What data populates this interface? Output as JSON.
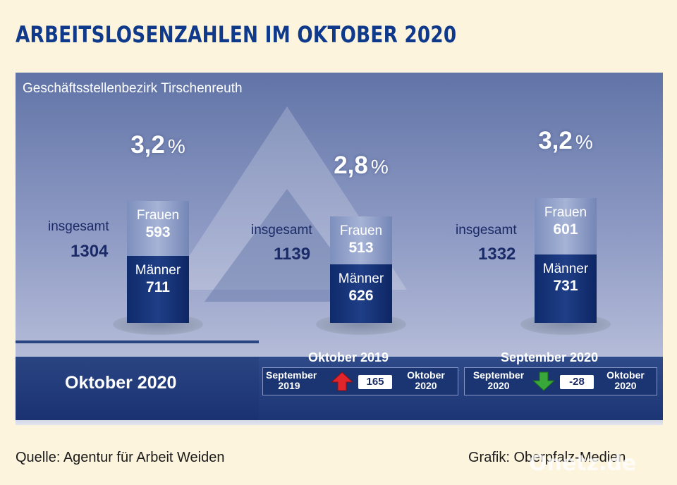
{
  "title": "ARBEITSLOSENZAHLEN IM OKTOBER 2020",
  "subtitle": "Geschäftsstellenbezirk Tirschenreuth",
  "chart_data": {
    "type": "bar",
    "stacked": true,
    "title": "ARBEITSLOSENZAHLEN IM OKTOBER 2020",
    "subtitle": "Geschäftsstellenbezirk Tirschenreuth",
    "bars": [
      {
        "rate": "3,2",
        "unit": "%",
        "total_label": "insgesamt",
        "total": "1304",
        "women_label": "Frauen",
        "women": 593,
        "men_label": "Männer",
        "men": 711
      },
      {
        "rate": "2,8",
        "unit": "%",
        "total_label": "insgesamt",
        "total": "1139",
        "women_label": "Frauen",
        "women": 513,
        "men_label": "Männer",
        "men": 626
      },
      {
        "rate": "3,2",
        "unit": "%",
        "total_label": "insgesamt",
        "total": "1332",
        "women_label": "Frauen",
        "women": 601,
        "men_label": "Männer",
        "men": 731
      }
    ],
    "current_label": "Oktober 2020",
    "comparisons": [
      {
        "title": "Oktober 2019",
        "from": "September 2019",
        "to": "Oktober 2020",
        "change": "165",
        "direction": "up",
        "color": "#e0262b"
      },
      {
        "title": "September 2020",
        "from": "September 2020",
        "to": "Oktober 2020",
        "change": "-28",
        "direction": "down",
        "color": "#39a83a"
      }
    ]
  },
  "footer": {
    "source": "Quelle: Agentur für Arbeit Weiden",
    "credit": "Grafik: Oberpfalz-Medien",
    "watermark": "Onetz.de"
  }
}
